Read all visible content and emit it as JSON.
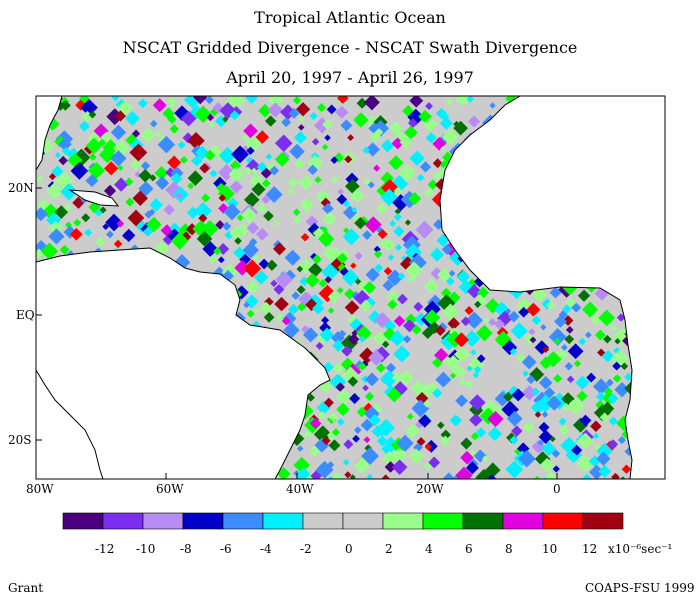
{
  "titles": {
    "line1": "Tropical Atlantic Ocean",
    "line2": "NSCAT Gridded Divergence - NSCAT Swath Divergence",
    "line3": "April 20, 1997 - April 26, 1997"
  },
  "axes": {
    "x_ticks": [
      "80W",
      "60W",
      "40W",
      "20W",
      "0"
    ],
    "y_ticks": [
      "20N",
      "EQ",
      "20S"
    ]
  },
  "colorbar": {
    "colors": [
      "#4b0082",
      "#7b2ef0",
      "#b88cf5",
      "#0000c8",
      "#3c8cff",
      "#00f0ff",
      "#cccccc",
      "#cccccc",
      "#9aff8a",
      "#00ff00",
      "#007000",
      "#e000e0",
      "#ff0000",
      "#a00010"
    ],
    "labels": [
      "-12",
      "-10",
      "-8",
      "-6",
      "-4",
      "-2",
      "0",
      "2",
      "4",
      "6",
      "8",
      "10",
      "12"
    ],
    "units": "x10⁻⁶sec⁻¹"
  },
  "footer": {
    "left": "Grant",
    "right": "COAPS-FSU 1999"
  }
}
